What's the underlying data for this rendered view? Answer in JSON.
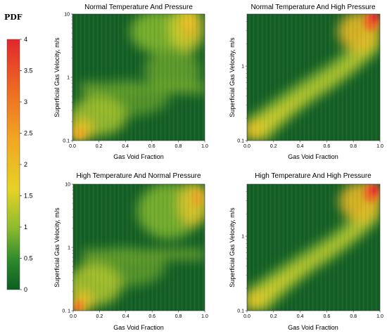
{
  "colorbar": {
    "label": "PDF",
    "min": 0,
    "max": 4,
    "ticks": [
      "0",
      "0.5",
      "1",
      "1.5",
      "2",
      "2.5",
      "3",
      "3.5",
      "4"
    ],
    "colors": [
      "#0b5e22",
      "#2f8a2c",
      "#8fbc2e",
      "#e6d225",
      "#f2a623",
      "#ee6a22",
      "#e3262d"
    ]
  },
  "chart_data": [
    {
      "type": "heatmap",
      "title": "Normal Temperature And Pressure",
      "xlabel": "Gas Void Fraction",
      "ylabel": "Superficial Gas Velocity,   m/s",
      "xlim": [
        0,
        1
      ],
      "ylim": [
        0.1,
        10
      ],
      "y_scale": "log",
      "x_ticks": [
        "0.0",
        "0.2",
        "0.4",
        "0.6",
        "0.8",
        "1.0"
      ],
      "y_ticks": [
        "0.1",
        "1",
        "10"
      ],
      "y_tick_values": [
        0.1,
        1,
        10
      ],
      "colorbar_range": [
        0,
        4
      ],
      "density_regions": [
        {
          "x": 0.03,
          "y": 0.12,
          "value": 2.6
        },
        {
          "x": 0.15,
          "y": 0.25,
          "value": 1.3
        },
        {
          "x": 0.5,
          "y": 0.8,
          "value": 1.1
        },
        {
          "x": 0.85,
          "y": 4.0,
          "value": 1.8
        },
        {
          "x": 0.9,
          "y": 8.0,
          "value": 2.2
        }
      ]
    },
    {
      "type": "heatmap",
      "title": "Normal Temperature And High Pressure",
      "xlabel": "Gas Void Fraction",
      "ylabel": "Superficial Gas Velocity,   m/s",
      "xlim": [
        0,
        1
      ],
      "ylim": [
        0.1,
        5
      ],
      "y_scale": "log",
      "x_ticks": [
        "0.0",
        "0.2",
        "0.4",
        "0.6",
        "0.8",
        "1.0"
      ],
      "y_ticks": [
        "0.1",
        "1"
      ],
      "y_tick_values": [
        0.1,
        1
      ],
      "colorbar_range": [
        0,
        4
      ],
      "density_regions": [
        {
          "x": 0.03,
          "y": 0.12,
          "value": 2.7
        },
        {
          "x": 0.3,
          "y": 0.3,
          "value": 1.5
        },
        {
          "x": 0.6,
          "y": 0.8,
          "value": 1.6
        },
        {
          "x": 0.85,
          "y": 2.0,
          "value": 2.6
        },
        {
          "x": 0.95,
          "y": 4.0,
          "value": 4.0
        }
      ]
    },
    {
      "type": "heatmap",
      "title": "High Temperature And Normal Pressure",
      "xlabel": "Gas Void Fraction",
      "ylabel": "Superficial Gas Velocity,   m/s",
      "xlim": [
        0,
        1
      ],
      "ylim": [
        0.1,
        10
      ],
      "y_scale": "log",
      "x_ticks": [
        "0.0",
        "0.2",
        "0.4",
        "0.6",
        "0.8",
        "1.0"
      ],
      "y_ticks": [
        "0. 1",
        "1",
        "10"
      ],
      "y_tick_values": [
        0.1,
        1,
        10
      ],
      "colorbar_range": [
        0,
        4
      ],
      "density_regions": [
        {
          "x": 0.03,
          "y": 0.12,
          "value": 2.8
        },
        {
          "x": 0.15,
          "y": 0.25,
          "value": 1.4
        },
        {
          "x": 0.45,
          "y": 0.75,
          "value": 1.2
        },
        {
          "x": 0.85,
          "y": 4.0,
          "value": 1.9
        },
        {
          "x": 0.92,
          "y": 8.0,
          "value": 2.4
        }
      ]
    },
    {
      "type": "heatmap",
      "title": "High Temperature And High Pressure",
      "xlabel": "Gas Void Fraction",
      "ylabel": "Superficial Gas Velocity,   m/s",
      "xlim": [
        0,
        1
      ],
      "ylim": [
        0.1,
        5
      ],
      "y_scale": "log",
      "x_ticks": [
        "0.0",
        "0.2",
        "0.4",
        "0.6",
        "0.8",
        "1.0"
      ],
      "y_ticks": [
        "0.1",
        "1"
      ],
      "y_tick_values": [
        0.1,
        1
      ],
      "colorbar_range": [
        0,
        4
      ],
      "density_regions": [
        {
          "x": 0.03,
          "y": 0.12,
          "value": 2.5
        },
        {
          "x": 0.3,
          "y": 0.3,
          "value": 1.4
        },
        {
          "x": 0.6,
          "y": 0.8,
          "value": 1.5
        },
        {
          "x": 0.85,
          "y": 2.0,
          "value": 2.7
        },
        {
          "x": 0.95,
          "y": 4.0,
          "value": 4.0
        }
      ]
    }
  ]
}
